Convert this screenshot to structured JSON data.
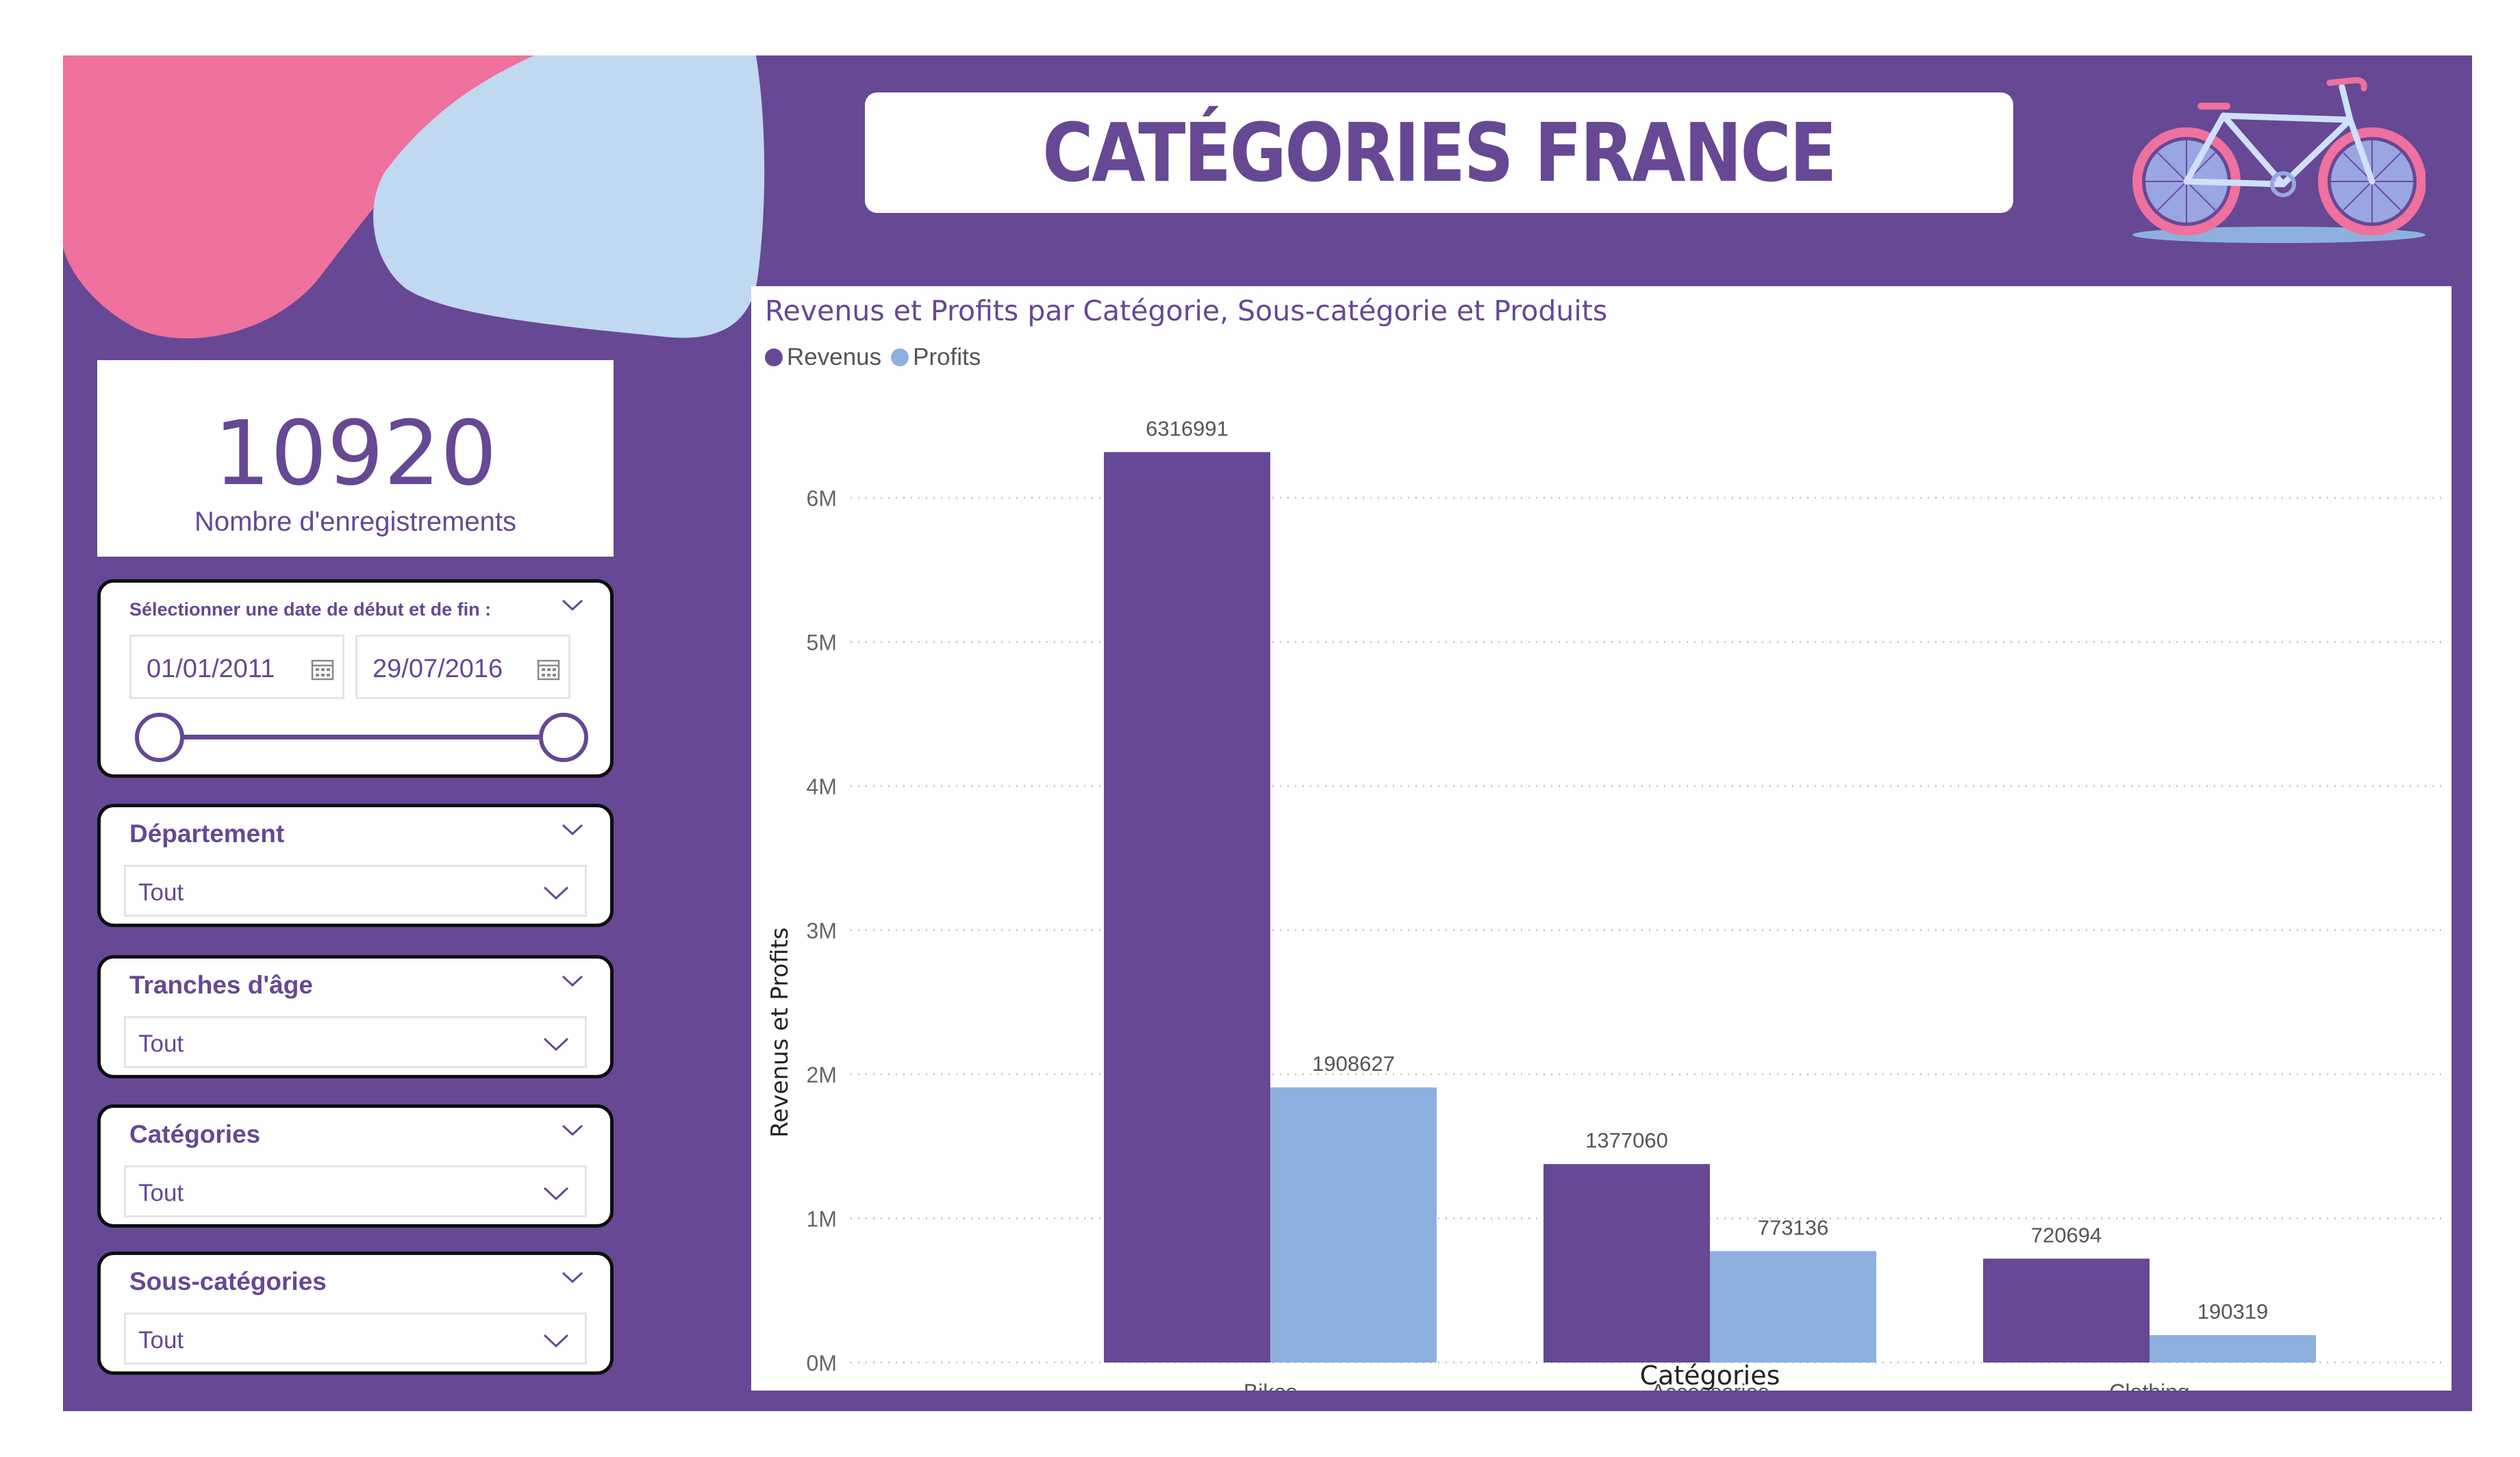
{
  "header": {
    "title": "CATÉGORIES FRANCE"
  },
  "kpi": {
    "value": "10920",
    "label": "Nombre d'enregistrements"
  },
  "date_slicer": {
    "title": "Sélectionner une date de début et de fin :",
    "start": "01/01/2011",
    "end": "29/07/2016"
  },
  "slicers": [
    {
      "title": "Département",
      "value": "Tout"
    },
    {
      "title": "Tranches d'âge",
      "value": "Tout"
    },
    {
      "title": "Catégories",
      "value": "Tout"
    },
    {
      "title": "Sous-catégories",
      "value": "Tout"
    }
  ],
  "colors": {
    "brand": "#664894",
    "revenus": "#664894",
    "profits": "#8eb0de",
    "blob_pink": "#ee719e",
    "blob_blue": "#c0d8f0"
  },
  "icons": {
    "brand": "bicycle-icon",
    "calendar": "calendar-icon",
    "chevron": "chevron-down-icon"
  },
  "chart_data": {
    "type": "bar",
    "title": "Revenus et Profits par Catégorie, Sous-catégorie et Produits",
    "xlabel": "Catégories",
    "ylabel": "Revenus et Profits",
    "categories": [
      "Bikes",
      "Accessories",
      "Clothing"
    ],
    "series": [
      {
        "name": "Revenus",
        "values": [
          6316991,
          1377060,
          720694
        ]
      },
      {
        "name": "Profits",
        "values": [
          1908627,
          773136,
          190319
        ]
      }
    ],
    "ylim": [
      0,
      6000000
    ],
    "yticks": [
      0,
      1000000,
      2000000,
      3000000,
      4000000,
      5000000,
      6000000
    ],
    "ytick_labels": [
      "0M",
      "1M",
      "2M",
      "3M",
      "4M",
      "5M",
      "6M"
    ],
    "grid": true,
    "legend": "top-left"
  }
}
